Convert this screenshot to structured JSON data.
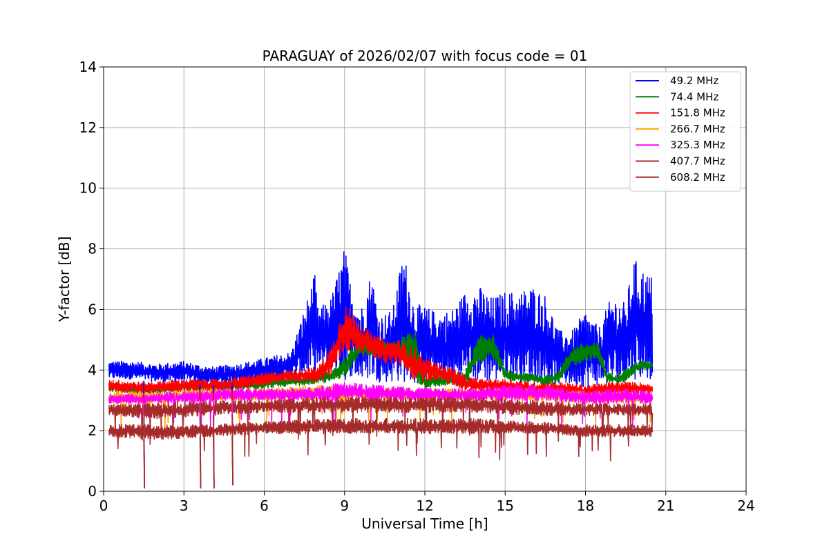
{
  "chart_data": {
    "type": "line",
    "title": "PARAGUAY of 2026/02/07 with focus code = 01",
    "xlabel": "Universal Time [h]",
    "ylabel": "Y-factor [dB]",
    "xlim": [
      0,
      24
    ],
    "ylim": [
      0,
      14
    ],
    "xticks": [
      0,
      3,
      6,
      9,
      12,
      15,
      18,
      21,
      24
    ],
    "yticks": [
      0,
      2,
      4,
      6,
      8,
      10,
      12,
      14
    ],
    "xtick_labels": [
      "0",
      "3",
      "6",
      "9",
      "12",
      "15",
      "18",
      "21",
      "24"
    ],
    "ytick_labels": [
      "0",
      "2",
      "4",
      "6",
      "8",
      "10",
      "12",
      "14"
    ],
    "grid": true,
    "legend_position": "top-right",
    "series": [
      {
        "name": " 49.2 MHz",
        "color": "#0000ff",
        "x": [
          0.2,
          1.0,
          2.0,
          3.0,
          4.0,
          5.0,
          6.0,
          7.0,
          7.9,
          8.0,
          8.5,
          9.0,
          9.2,
          9.6,
          10.0,
          10.3,
          10.8,
          11.2,
          11.6,
          12.0,
          12.5,
          13.0,
          13.5,
          14.0,
          14.5,
          15.0,
          15.5,
          16.0,
          16.5,
          17.0,
          17.5,
          18.0,
          18.5,
          19.0,
          19.5,
          19.8,
          20.2,
          20.5
        ],
        "low": [
          3.7,
          3.7,
          3.6,
          3.6,
          3.5,
          3.6,
          3.6,
          3.7,
          3.8,
          4.0,
          3.9,
          3.6,
          3.8,
          3.6,
          3.7,
          3.6,
          3.6,
          3.6,
          3.5,
          3.6,
          3.6,
          3.5,
          3.6,
          3.6,
          3.6,
          3.7,
          3.6,
          3.6,
          3.5,
          3.5,
          3.5,
          3.4,
          3.5,
          3.5,
          3.6,
          3.7,
          3.7,
          3.7
        ],
        "high": [
          4.3,
          4.3,
          4.2,
          4.3,
          4.1,
          4.2,
          4.4,
          4.6,
          7.2,
          6.0,
          6.4,
          8.1,
          7.0,
          6.0,
          7.3,
          5.8,
          6.0,
          8.0,
          6.2,
          6.1,
          5.9,
          6.0,
          6.6,
          6.8,
          6.4,
          6.6,
          6.6,
          6.8,
          6.5,
          5.3,
          5.3,
          6.0,
          5.4,
          6.5,
          6.2,
          7.7,
          7.3,
          7.1
        ]
      },
      {
        "name": " 74.4 MHz",
        "color": "#008000",
        "x": [
          0.2,
          1.5,
          3.0,
          4.5,
          6.0,
          7.5,
          8.5,
          9.0,
          9.5,
          10.0,
          11.0,
          11.6,
          12.0,
          13.0,
          13.5,
          14.0,
          14.5,
          15.0,
          15.5,
          16.0,
          16.5,
          17.0,
          17.5,
          18.0,
          18.5,
          18.8,
          19.2,
          19.6,
          20.0,
          20.5
        ],
        "low": [
          3.3,
          3.2,
          3.3,
          3.3,
          3.4,
          3.5,
          3.6,
          3.8,
          4.4,
          4.5,
          4.4,
          3.6,
          3.4,
          3.5,
          3.4,
          4.2,
          4.4,
          3.7,
          3.6,
          3.6,
          3.5,
          3.6,
          4.1,
          4.3,
          4.3,
          3.6,
          3.5,
          3.7,
          4.0,
          4.0
        ],
        "high": [
          3.6,
          3.5,
          3.6,
          3.6,
          3.7,
          3.8,
          4.0,
          4.4,
          5.0,
          5.0,
          5.0,
          5.3,
          3.8,
          3.8,
          4.0,
          5.1,
          5.3,
          4.0,
          3.9,
          3.9,
          3.8,
          4.0,
          4.8,
          4.9,
          4.9,
          3.9,
          3.9,
          4.1,
          4.3,
          4.3
        ]
      },
      {
        "name": "151.8 MHz",
        "color": "#ff0000",
        "x": [
          0.2,
          1.5,
          3.0,
          4.5,
          6.0,
          7.0,
          8.0,
          8.5,
          9.0,
          9.5,
          10.0,
          10.5,
          11.0,
          11.5,
          12.0,
          12.5,
          13.0,
          13.5,
          14.0,
          15.0,
          16.0,
          17.0,
          18.0,
          19.0,
          20.0,
          20.5
        ],
        "low": [
          3.3,
          3.2,
          3.3,
          3.3,
          3.5,
          3.6,
          3.6,
          3.8,
          4.6,
          4.6,
          4.5,
          4.2,
          4.2,
          3.7,
          3.6,
          3.7,
          3.5,
          3.3,
          3.3,
          3.3,
          3.2,
          3.2,
          3.1,
          3.2,
          3.2,
          3.2
        ],
        "high": [
          3.7,
          3.6,
          3.7,
          3.7,
          3.9,
          4.0,
          4.1,
          4.8,
          6.2,
          5.7,
          5.2,
          5.0,
          5.0,
          4.8,
          4.4,
          4.2,
          4.1,
          3.8,
          3.7,
          3.7,
          3.6,
          3.6,
          3.5,
          3.6,
          3.6,
          3.5
        ]
      },
      {
        "name": "266.7 MHz",
        "color": "#ffa500",
        "x": [
          0.2,
          2.0,
          4.0,
          6.0,
          8.0,
          10.0,
          12.0,
          14.0,
          16.0,
          18.0,
          20.5
        ],
        "low": [
          2.9,
          2.9,
          3.0,
          3.0,
          3.0,
          3.0,
          3.0,
          3.0,
          3.0,
          2.9,
          2.9
        ],
        "high": [
          3.3,
          3.3,
          3.4,
          3.4,
          3.5,
          3.4,
          3.4,
          3.4,
          3.4,
          3.3,
          3.3
        ]
      },
      {
        "name": "325.3 MHz",
        "color": "#ff00ff",
        "x": [
          0.2,
          1.5,
          3.0,
          4.5,
          6.0,
          7.5,
          9.0,
          10.5,
          12.0,
          13.5,
          15.0,
          16.5,
          18.0,
          19.5,
          20.5
        ],
        "low": [
          2.9,
          2.9,
          2.9,
          3.0,
          3.0,
          3.0,
          3.0,
          3.0,
          3.0,
          3.0,
          3.0,
          3.0,
          2.9,
          2.9,
          2.9
        ],
        "high": [
          3.2,
          3.2,
          3.3,
          3.4,
          3.4,
          3.4,
          3.6,
          3.5,
          3.4,
          3.4,
          3.5,
          3.5,
          3.3,
          3.4,
          3.3
        ]
      },
      {
        "name": "407.7 MHz",
        "color": "#a52a2a",
        "x": [
          0.2,
          2.0,
          4.0,
          6.0,
          8.0,
          10.0,
          12.0,
          14.0,
          16.0,
          18.0,
          20.5
        ],
        "low": [
          2.5,
          2.4,
          2.5,
          2.6,
          2.6,
          2.6,
          2.6,
          2.6,
          2.5,
          2.5,
          2.5
        ],
        "high": [
          2.9,
          2.9,
          3.0,
          3.0,
          3.1,
          3.1,
          3.1,
          3.1,
          3.0,
          2.9,
          2.9
        ]
      },
      {
        "name": "608.2 MHz",
        "color": "#a52a2a",
        "x": [
          0.2,
          2.0,
          4.0,
          6.0,
          8.0,
          10.0,
          12.0,
          14.0,
          16.0,
          18.0,
          20.5
        ],
        "low": [
          1.8,
          1.7,
          1.8,
          1.9,
          1.9,
          1.9,
          1.9,
          1.9,
          1.9,
          1.8,
          1.8
        ],
        "high": [
          2.2,
          2.2,
          2.2,
          2.3,
          2.4,
          2.4,
          2.4,
          2.4,
          2.3,
          2.2,
          2.2
        ]
      }
    ],
    "dropouts": [
      {
        "x": 1.5,
        "y": 0.1
      },
      {
        "x": 3.6,
        "y": 0.1
      },
      {
        "x": 4.1,
        "y": 0.1
      },
      {
        "x": 4.8,
        "y": 0.2
      }
    ]
  }
}
